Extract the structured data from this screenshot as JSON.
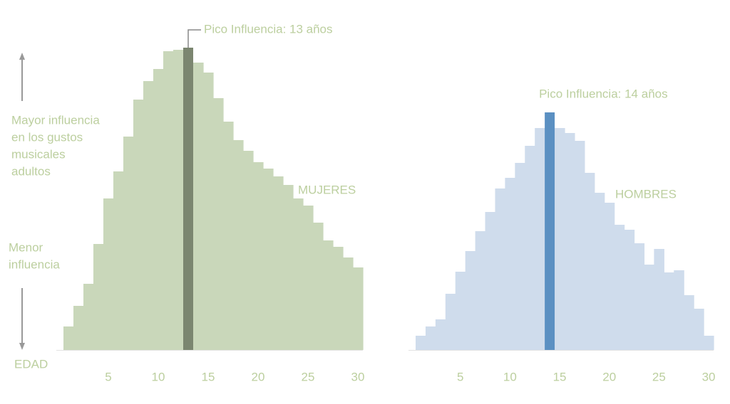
{
  "side_labels": {
    "top": [
      "Mayor influencia",
      "en los gustos",
      "musicales",
      "adultos"
    ],
    "bottom": [
      "Menor",
      "influencia"
    ]
  },
  "chart_data": [
    {
      "type": "histogram",
      "label": "MUJERES",
      "annotation": "Pico Influencia: 13 años",
      "xlabel": "EDAD",
      "x": [
        1,
        2,
        3,
        4,
        5,
        6,
        7,
        8,
        9,
        10,
        11,
        12,
        13,
        14,
        15,
        16,
        17,
        18,
        19,
        20,
        21,
        22,
        23,
        24,
        25,
        26,
        27,
        28,
        29,
        30
      ],
      "values": [
        33,
        62,
        93,
        149,
        213,
        251,
        300,
        352,
        378,
        395,
        420,
        422,
        425,
        404,
        390,
        354,
        321,
        295,
        280,
        264,
        255,
        244,
        232,
        213,
        203,
        179,
        154,
        145,
        130,
        116
      ],
      "color": "#c9d7ba",
      "highlight": 13,
      "highlight_color": "#7b8670",
      "xlim": [
        0.5,
        30.5
      ],
      "xticks": [
        5,
        10,
        15,
        20,
        25,
        30
      ],
      "ylim": [
        0,
        425
      ]
    },
    {
      "type": "histogram",
      "label": "HOMBRES",
      "annotation": "Pico Influencia: 14 años",
      "x": [
        1,
        2,
        3,
        4,
        5,
        6,
        7,
        8,
        9,
        10,
        11,
        12,
        13,
        14,
        15,
        16,
        17,
        18,
        19,
        20,
        21,
        22,
        23,
        24,
        25,
        26,
        27,
        28,
        29,
        30
      ],
      "values": [
        20,
        33,
        43,
        79,
        110,
        139,
        167,
        194,
        227,
        242,
        263,
        287,
        312,
        334,
        312,
        305,
        294,
        249,
        221,
        207,
        176,
        169,
        150,
        120,
        142,
        109,
        112,
        77,
        58,
        20
      ],
      "color": "#cfdcec",
      "highlight": 14,
      "highlight_color": "#5b90c2",
      "xlim": [
        0.5,
        30.5
      ],
      "xticks": [
        5,
        10,
        15,
        20,
        25,
        30
      ],
      "ylim": [
        0,
        425
      ]
    }
  ]
}
